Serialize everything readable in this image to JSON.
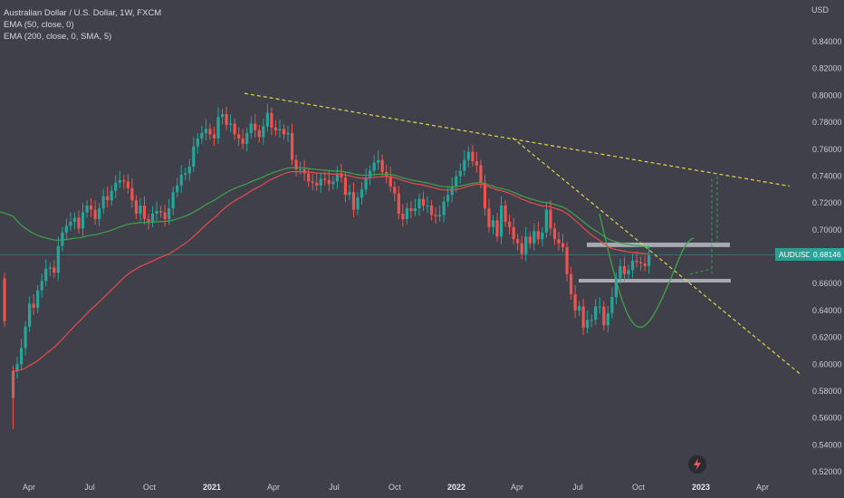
{
  "legend": {
    "title": "Australian Dollar / U.S. Dollar, 1W, FXCM",
    "ema50": "EMA (50, close, 0)",
    "ema200": "EMA (200, close, 0, SMA, 5)"
  },
  "price_axis": {
    "currency": "USD",
    "ticks": [
      "0.84000",
      "0.82000",
      "0.80000",
      "0.78000",
      "0.76000",
      "0.74000",
      "0.72000",
      "0.70000",
      "0.68000",
      "0.66000",
      "0.64000",
      "0.62000",
      "0.60000",
      "0.58000",
      "0.56000",
      "0.54000",
      "0.52000"
    ]
  },
  "symbol_badge": "AUDUSD",
  "price_badge": "0.68146",
  "colors": {
    "background": "#3f4049",
    "up_candle": "#26a69a",
    "down_candle": "#ef5350",
    "ema50": "#e84a4a",
    "ema200": "#3fa34d",
    "trendline": "#e0d64a",
    "zone": "#b8bcc4",
    "price_line": "#2a9d8f"
  },
  "chart_data": {
    "type": "candlestick",
    "symbol": "AUDUSD",
    "timeframe": "1W",
    "x_axis_labels": [
      "Apr",
      "Jul",
      "Oct",
      "2021",
      "Apr",
      "Jul",
      "Oct",
      "2022",
      "Apr",
      "Jul",
      "Oct",
      "2023",
      "Apr"
    ],
    "ylim": [
      0.52,
      0.85
    ],
    "last_price": 0.68146,
    "weekly_closes": [
      0.595,
      0.6,
      0.612,
      0.628,
      0.645,
      0.642,
      0.655,
      0.662,
      0.671,
      0.672,
      0.668,
      0.688,
      0.698,
      0.703,
      0.706,
      0.709,
      0.701,
      0.713,
      0.718,
      0.715,
      0.708,
      0.716,
      0.725,
      0.722,
      0.729,
      0.735,
      0.737,
      0.736,
      0.731,
      0.722,
      0.712,
      0.718,
      0.708,
      0.706,
      0.712,
      0.714,
      0.713,
      0.708,
      0.716,
      0.728,
      0.733,
      0.741,
      0.742,
      0.747,
      0.762,
      0.768,
      0.772,
      0.775,
      0.771,
      0.768,
      0.784,
      0.786,
      0.778,
      0.779,
      0.771,
      0.768,
      0.764,
      0.772,
      0.779,
      0.774,
      0.769,
      0.777,
      0.787,
      0.776,
      0.774,
      0.775,
      0.771,
      0.772,
      0.752,
      0.745,
      0.745,
      0.742,
      0.736,
      0.735,
      0.733,
      0.738,
      0.737,
      0.734,
      0.736,
      0.742,
      0.739,
      0.726,
      0.728,
      0.715,
      0.724,
      0.73,
      0.739,
      0.744,
      0.75,
      0.752,
      0.743,
      0.74,
      0.732,
      0.727,
      0.712,
      0.708,
      0.716,
      0.714,
      0.716,
      0.723,
      0.718,
      0.718,
      0.711,
      0.71,
      0.711,
      0.721,
      0.726,
      0.732,
      0.74,
      0.744,
      0.752,
      0.758,
      0.751,
      0.748,
      0.735,
      0.716,
      0.702,
      0.707,
      0.695,
      0.718,
      0.706,
      0.702,
      0.693,
      0.69,
      0.682,
      0.695,
      0.69,
      0.699,
      0.693,
      0.698,
      0.715,
      0.701,
      0.693,
      0.69,
      0.687,
      0.667,
      0.652,
      0.64,
      0.643,
      0.627,
      0.633,
      0.633,
      0.643,
      0.643,
      0.629,
      0.638,
      0.65,
      0.664,
      0.673,
      0.667,
      0.67,
      0.677,
      0.676,
      0.675,
      0.673,
      0.681
    ]
  }
}
